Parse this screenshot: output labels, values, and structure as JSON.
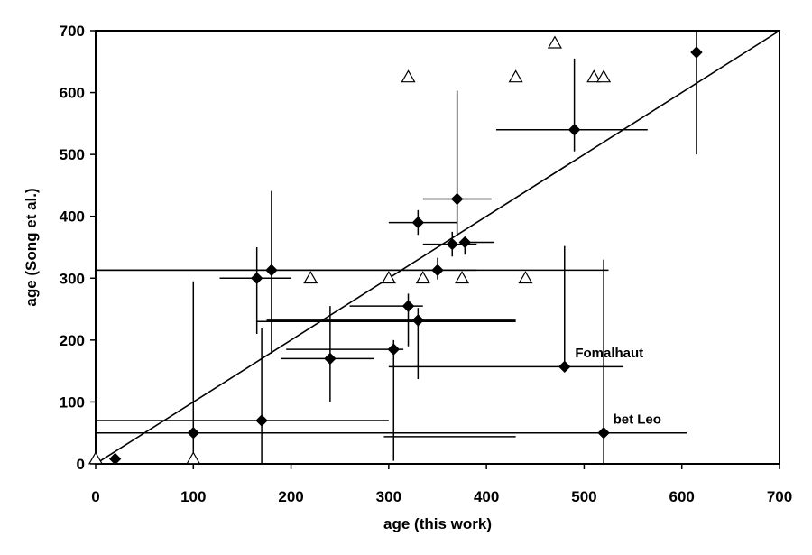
{
  "chart_data": {
    "type": "scatter",
    "title": "",
    "xlabel": "age (this work)",
    "ylabel": "age (Song et al.)",
    "xlim": [
      0,
      700
    ],
    "ylim": [
      0,
      700
    ],
    "xticks": [
      "0",
      "100",
      "200",
      "300",
      "400",
      "500",
      "600",
      "700"
    ],
    "yticks": [
      "0",
      "100",
      "200",
      "300",
      "400",
      "500",
      "600",
      "700"
    ],
    "grid": false,
    "legend": "none",
    "reference_line": {
      "from": [
        0,
        0
      ],
      "to": [
        700,
        700
      ]
    },
    "series": [
      {
        "marker": "filled-diamond",
        "color": "#000000",
        "points": [
          {
            "x": 20,
            "y": 8,
            "xerr": [
              0,
              0
            ],
            "yerr": [
              0,
              0
            ]
          },
          {
            "x": 100,
            "y": 50,
            "xerr": [
              100,
              430
            ],
            "yerr": [
              50,
              245
            ]
          },
          {
            "x": 170,
            "y": 70,
            "xerr": [
              170,
              130
            ],
            "yerr": [
              70,
              150
            ]
          },
          {
            "x": 165,
            "y": 300,
            "xerr": [
              38,
              35
            ],
            "yerr": [
              90,
              50
            ]
          },
          {
            "x": 180,
            "y": 313,
            "xerr": [
              180,
              345
            ],
            "yerr": [
              135,
              128
            ]
          },
          {
            "x": 240,
            "y": 170,
            "xerr": [
              50,
              45
            ],
            "yerr": [
              70,
              85
            ]
          },
          {
            "x": 305,
            "y": 185,
            "xerr": [
              110,
              10
            ],
            "yerr": [
              180,
              15
            ]
          },
          {
            "x": 320,
            "y": 255,
            "xerr": [
              60,
              15
            ],
            "yerr": [
              65,
              20
            ]
          },
          {
            "x": 330,
            "y": 232,
            "xerr": [
              155,
              100
            ],
            "yerr": [
              95,
              20
            ]
          },
          {
            "x": 330,
            "y": 390,
            "xerr": [
              30,
              40
            ],
            "yerr": [
              20,
              20
            ]
          },
          {
            "x": 350,
            "y": 313,
            "xerr": [
              0,
              0
            ],
            "yerr": [
              15,
              20
            ]
          },
          {
            "x": 365,
            "y": 355,
            "xerr": [
              30,
              25
            ],
            "yerr": [
              20,
              20
            ]
          },
          {
            "x": 370,
            "y": 428,
            "xerr": [
              35,
              35
            ],
            "yerr": [
              60,
              175
            ]
          },
          {
            "x": 378,
            "y": 358,
            "xerr": [
              0,
              30
            ],
            "yerr": [
              20,
              0
            ]
          },
          {
            "x": 480,
            "y": 157,
            "xerr": [
              180,
              60
            ],
            "yerr": [
              0,
              195
            ]
          },
          {
            "x": 490,
            "y": 540,
            "xerr": [
              80,
              75
            ],
            "yerr": [
              35,
              115
            ]
          },
          {
            "x": 520,
            "y": 50,
            "xerr": [
              0,
              85
            ],
            "yerr": [
              50,
              280
            ]
          },
          {
            "x": 615,
            "y": 665,
            "xerr": [
              0,
              0
            ],
            "yerr": [
              165,
              35
            ]
          }
        ]
      },
      {
        "marker": "open-triangle",
        "color": "#000000",
        "points": [
          {
            "x": 0,
            "y": 8
          },
          {
            "x": 100,
            "y": 8
          },
          {
            "x": 220,
            "y": 300
          },
          {
            "x": 300,
            "y": 300
          },
          {
            "x": 320,
            "y": 625
          },
          {
            "x": 335,
            "y": 300
          },
          {
            "x": 375,
            "y": 300
          },
          {
            "x": 430,
            "y": 625
          },
          {
            "x": 440,
            "y": 300
          },
          {
            "x": 470,
            "y": 680
          },
          {
            "x": 510,
            "y": 625
          },
          {
            "x": 520,
            "y": 625
          }
        ]
      }
    ],
    "extra_errorbars": [
      {
        "x0": 0,
        "x1": 390,
        "y": 313
      },
      {
        "x0": 165,
        "x1": 430,
        "y": 230
      },
      {
        "x0": 295,
        "x1": 430,
        "y": 44
      },
      {
        "x0": 305,
        "x1": 375,
        "y": 0
      }
    ],
    "annotations": [
      {
        "text": "Fomalhaut",
        "x": 487,
        "y": 172
      },
      {
        "text": "bet Leo",
        "x": 526,
        "y": 65
      }
    ]
  }
}
